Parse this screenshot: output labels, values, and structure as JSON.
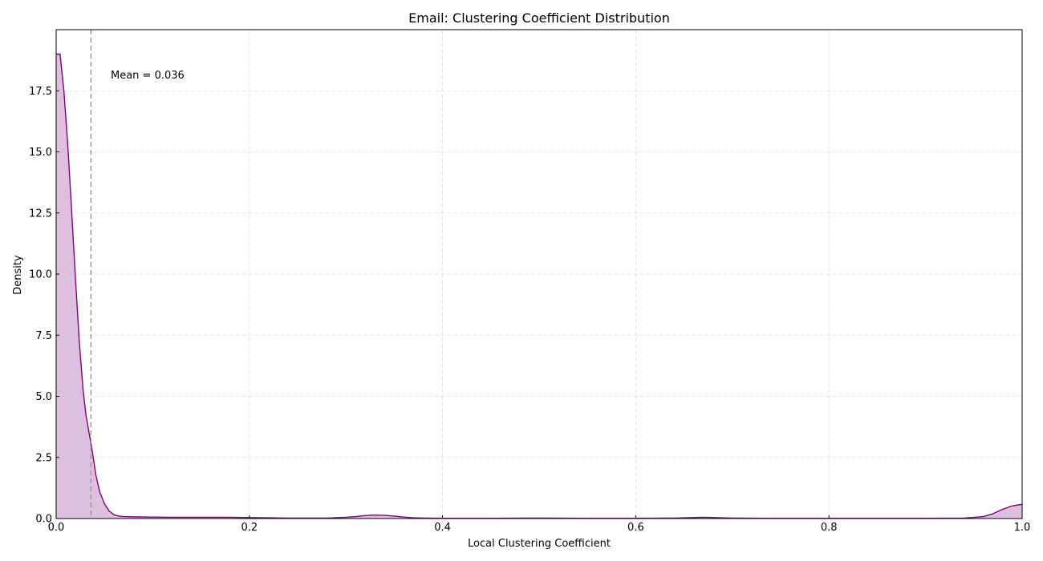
{
  "chart_data": {
    "type": "area",
    "title": "Email: Clustering Coefficient Distribution",
    "xlabel": "Local Clustering Coefficient",
    "ylabel": "Density",
    "xlim": [
      0.0,
      1.0
    ],
    "ylim": [
      0.0,
      20.0
    ],
    "xticks": [
      0.0,
      0.2,
      0.4,
      0.6,
      0.8,
      1.0
    ],
    "xtick_labels": [
      "0.0",
      "0.2",
      "0.4",
      "0.6",
      "0.8",
      "1.0"
    ],
    "yticks": [
      0.0,
      2.5,
      5.0,
      7.5,
      10.0,
      12.5,
      15.0,
      17.5
    ],
    "ytick_labels": [
      "0.0",
      "2.5",
      "5.0",
      "7.5",
      "10.0",
      "12.5",
      "15.0",
      "17.5"
    ],
    "grid": true,
    "line_color": "#800080",
    "fill_color": "#dfbfe0",
    "mean_line_color": "#999999",
    "series": [
      {
        "x": [
          0.0,
          0.004,
          0.008,
          0.012,
          0.016,
          0.02,
          0.024,
          0.028,
          0.031,
          0.035,
          0.038,
          0.041,
          0.045,
          0.05,
          0.055,
          0.06,
          0.065,
          0.07,
          0.08,
          0.1,
          0.12,
          0.14,
          0.16,
          0.18,
          0.2,
          0.22,
          0.24,
          0.26,
          0.28,
          0.3,
          0.31,
          0.32,
          0.33,
          0.34,
          0.35,
          0.36,
          0.37,
          0.38,
          0.4,
          0.45,
          0.5,
          0.55,
          0.6,
          0.64,
          0.67,
          0.7,
          0.74,
          0.8,
          0.9,
          0.94,
          0.96,
          0.97,
          0.98,
          0.99,
          1.0
        ],
        "y": [
          19.0,
          19.0,
          17.5,
          15.3,
          12.6,
          9.8,
          7.2,
          5.2,
          4.2,
          3.3,
          2.6,
          1.8,
          1.1,
          0.6,
          0.3,
          0.15,
          0.1,
          0.08,
          0.07,
          0.06,
          0.05,
          0.05,
          0.05,
          0.05,
          0.04,
          0.03,
          0.02,
          0.02,
          0.02,
          0.05,
          0.08,
          0.12,
          0.14,
          0.13,
          0.1,
          0.06,
          0.03,
          0.02,
          0.01,
          0.01,
          0.02,
          0.01,
          0.01,
          0.02,
          0.05,
          0.02,
          0.01,
          0.01,
          0.01,
          0.02,
          0.08,
          0.2,
          0.38,
          0.52,
          0.58
        ]
      }
    ],
    "mean": 0.036,
    "mean_label": "Mean = 0.036"
  }
}
